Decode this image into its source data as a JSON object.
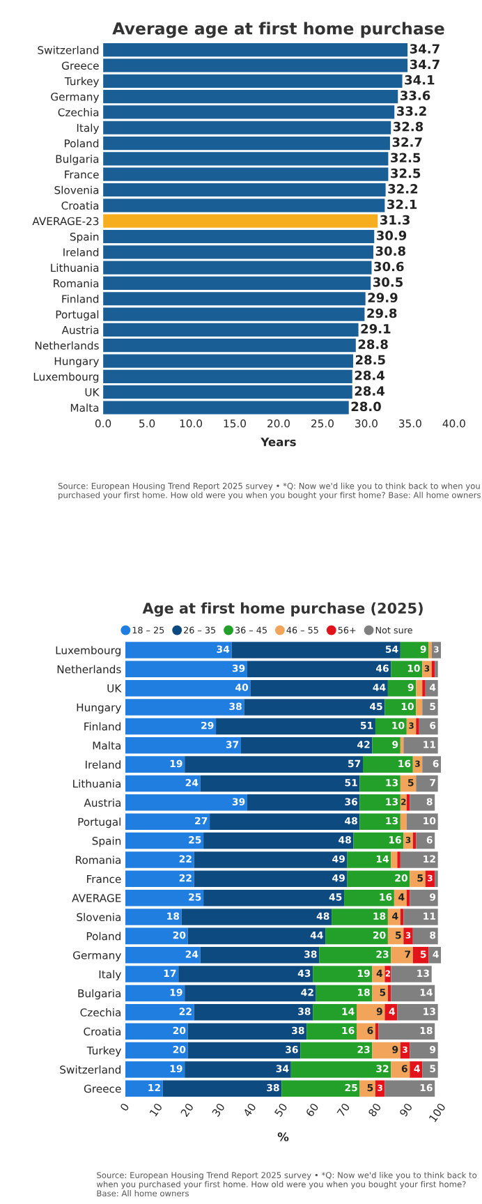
{
  "chart_data": [
    {
      "type": "bar",
      "orientation": "horizontal",
      "title": "Average age at first home purchase",
      "xlabel": "Years",
      "categories": [
        "Switzerland",
        "Greece",
        "Turkey",
        "Germany",
        "Czechia",
        "Italy",
        "Poland",
        "Bulgaria",
        "France",
        "Slovenia",
        "Croatia",
        "AVERAGE-23",
        "Spain",
        "Ireland",
        "Lithuania",
        "Romania",
        "Finland",
        "Portugal",
        "Austria",
        "Netherlands",
        "Hungary",
        "Luxembourg",
        "UK",
        "Malta"
      ],
      "values": [
        34.7,
        34.7,
        34.1,
        33.6,
        33.2,
        32.8,
        32.7,
        32.5,
        32.5,
        32.2,
        32.1,
        31.3,
        30.9,
        30.8,
        30.6,
        30.5,
        29.9,
        29.8,
        29.1,
        28.8,
        28.5,
        28.4,
        28.4,
        28.0
      ],
      "value_labels": [
        "34.7",
        "34.7",
        "34.1",
        "33.6",
        "33.2",
        "32.8",
        "32.7",
        "32.5",
        "32.5",
        "32.2",
        "32.1",
        "31.3",
        "30.9",
        "30.8",
        "30.6",
        "30.5",
        "29.9",
        "29.8",
        "29.1",
        "28.8",
        "28.5",
        "28.4",
        "28.4",
        "28.0"
      ],
      "colors": [
        "#1a5e96",
        "#1a5e96",
        "#1a5e96",
        "#1a5e96",
        "#1a5e96",
        "#1a5e96",
        "#1a5e96",
        "#1a5e96",
        "#1a5e96",
        "#1a5e96",
        "#1a5e96",
        "#f7ae1e",
        "#1a5e96",
        "#1a5e96",
        "#1a5e96",
        "#1a5e96",
        "#1a5e96",
        "#1a5e96",
        "#1a5e96",
        "#1a5e96",
        "#1a5e96",
        "#1a5e96",
        "#1a5e96",
        "#1a5e96"
      ],
      "xlim": [
        0,
        40
      ],
      "xticks": [
        {
          "value": 0,
          "label": "0.0"
        },
        {
          "value": 5,
          "label": "5.0"
        },
        {
          "value": 10,
          "label": "10.0"
        },
        {
          "value": 15,
          "label": "15.0"
        },
        {
          "value": 20,
          "label": "20.0"
        },
        {
          "value": 25,
          "label": "25.0"
        },
        {
          "value": 30,
          "label": "30.0"
        },
        {
          "value": 35,
          "label": "35.0"
        },
        {
          "value": 40,
          "label": "40.0"
        }
      ],
      "annotations": [
        "Source: European Housing Trend Report 2025 survey • *Q: Now we'd like you to think back to when you purchased your first home. How old were you when you bought your first home? Base: All home owners"
      ]
    },
    {
      "type": "bar",
      "orientation": "horizontal",
      "stacked": true,
      "title": "Age at first home purchase (2025)",
      "xlabel": "%",
      "legend": "top",
      "categories": [
        "Luxembourg",
        "Netherlands",
        "UK",
        "Hungary",
        "Finland",
        "Malta",
        "Ireland",
        "Lithuania",
        "Austria",
        "Portugal",
        "Spain",
        "Romania",
        "France",
        "AVERAGE",
        "Slovenia",
        "Poland",
        "Germany",
        "Italy",
        "Bulgaria",
        "Czechia",
        "Croatia",
        "Turkey",
        "Switzerland",
        "Greece"
      ],
      "series": [
        {
          "name": "18 – 25",
          "color": "#1f7ee0",
          "values": [
            34,
            39,
            40,
            38,
            29,
            37,
            19,
            24,
            39,
            27,
            25,
            22,
            22,
            25,
            18,
            20,
            24,
            17,
            19,
            22,
            20,
            20,
            19,
            12
          ],
          "value_labels": [
            "34",
            "39",
            "40",
            "38",
            "29",
            "37",
            "19",
            "24",
            "39",
            "27",
            "25",
            "22",
            "22",
            "25",
            "18",
            "20",
            "24",
            "17",
            "19",
            "22",
            "20",
            "20",
            "19",
            "12"
          ]
        },
        {
          "name": "26 – 35",
          "color": "#0d4a80",
          "values": [
            54,
            46,
            44,
            45,
            51,
            42,
            57,
            51,
            36,
            48,
            48,
            49,
            49,
            45,
            48,
            44,
            38,
            43,
            42,
            38,
            38,
            36,
            34,
            38
          ],
          "value_labels": [
            "54",
            "46",
            "44",
            "45",
            "51",
            "42",
            "57",
            "51",
            "36",
            "48",
            "48",
            "49",
            "49",
            "45",
            "48",
            "44",
            "38",
            "43",
            "42",
            "38",
            "38",
            "36",
            "34",
            "38"
          ]
        },
        {
          "name": "36 – 45",
          "color": "#23a02a",
          "values": [
            9,
            10,
            9,
            10,
            10,
            9,
            16,
            13,
            13,
            13,
            16,
            14,
            20,
            16,
            18,
            20,
            23,
            19,
            18,
            14,
            16,
            23,
            32,
            25
          ],
          "value_labels": [
            "9",
            "10",
            "9",
            "10",
            "10",
            "9",
            "16",
            "13",
            "13",
            "13",
            "16",
            "14",
            "20",
            "16",
            "18",
            "20",
            "23",
            "19",
            "18",
            "14",
            "16",
            "23",
            "32",
            "25"
          ]
        },
        {
          "name": "46 – 55",
          "color": "#f2a55a",
          "values": [
            1,
            3,
            2,
            2,
            3,
            1,
            3,
            5,
            2,
            2,
            3,
            2,
            5,
            4,
            4,
            5,
            7,
            4,
            5,
            9,
            6,
            9,
            6,
            5
          ],
          "value_labels": [
            null,
            "3",
            null,
            null,
            "3",
            null,
            "3",
            "5",
            "2",
            null,
            "3",
            null,
            "5",
            "4",
            "4",
            "5",
            "7",
            "4",
            "5",
            "9",
            "6",
            "9",
            "6",
            "5"
          ]
        },
        {
          "name": "56+",
          "color": "#e3131b",
          "values": [
            0,
            1,
            1,
            0,
            1,
            0,
            0,
            0,
            1,
            0,
            1,
            1,
            3,
            1,
            1,
            3,
            5,
            2,
            1,
            4,
            1,
            3,
            4,
            3
          ],
          "value_labels": [
            null,
            null,
            null,
            null,
            null,
            null,
            null,
            null,
            null,
            null,
            null,
            null,
            "3",
            null,
            null,
            "3",
            "5",
            "2",
            null,
            "4",
            null,
            "3",
            "4",
            "3"
          ]
        },
        {
          "name": "Not sure",
          "color": "#808080",
          "values": [
            3,
            1,
            4,
            5,
            6,
            11,
            6,
            7,
            8,
            10,
            6,
            12,
            1,
            9,
            11,
            8,
            4,
            13,
            14,
            13,
            18,
            9,
            5,
            16
          ],
          "value_labels": [
            "3",
            null,
            "4",
            "5",
            "6",
            "11",
            "6",
            "7",
            "8",
            "10",
            "6",
            "12",
            null,
            "9",
            "11",
            "8",
            "4",
            "13",
            "14",
            "13",
            "18",
            "9",
            "5",
            "16"
          ]
        }
      ],
      "xlim": [
        0,
        101
      ],
      "xticks": [
        0,
        10,
        20,
        30,
        40,
        50,
        60,
        70,
        80,
        90,
        100
      ],
      "annotations": [
        "Source: European Housing Trend Report 2025 survey • *Q: Now we'd like you to think back to when you purchased your first home. How old were you when you bought your first home? Base: All home owners"
      ]
    }
  ]
}
